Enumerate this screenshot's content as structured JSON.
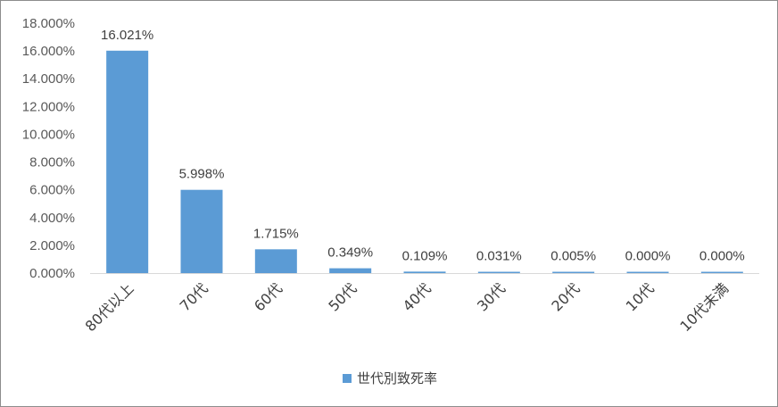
{
  "chart_data": {
    "type": "bar",
    "categories": [
      "80代以上",
      "70代",
      "60代",
      "50代",
      "40代",
      "30代",
      "20代",
      "10代",
      "10代未満"
    ],
    "series": [
      {
        "name": "世代別致死率",
        "values": [
          16.021,
          5.998,
          1.715,
          0.349,
          0.109,
          0.031,
          0.005,
          0.0,
          0.0
        ],
        "labels": [
          "16.021%",
          "5.998%",
          "1.715%",
          "0.349%",
          "0.109%",
          "0.031%",
          "0.005%",
          "0.000%",
          "0.000%"
        ],
        "color": "#5b9bd5"
      }
    ],
    "ylim": [
      0,
      18
    ],
    "yticks": [
      0,
      2,
      4,
      6,
      8,
      10,
      12,
      14,
      16,
      18
    ],
    "ytick_labels": [
      "0.000%",
      "2.000%",
      "4.000%",
      "6.000%",
      "8.000%",
      "10.000%",
      "12.000%",
      "14.000%",
      "16.000%",
      "18.000%"
    ],
    "grid": false,
    "legend_position": "bottom"
  }
}
